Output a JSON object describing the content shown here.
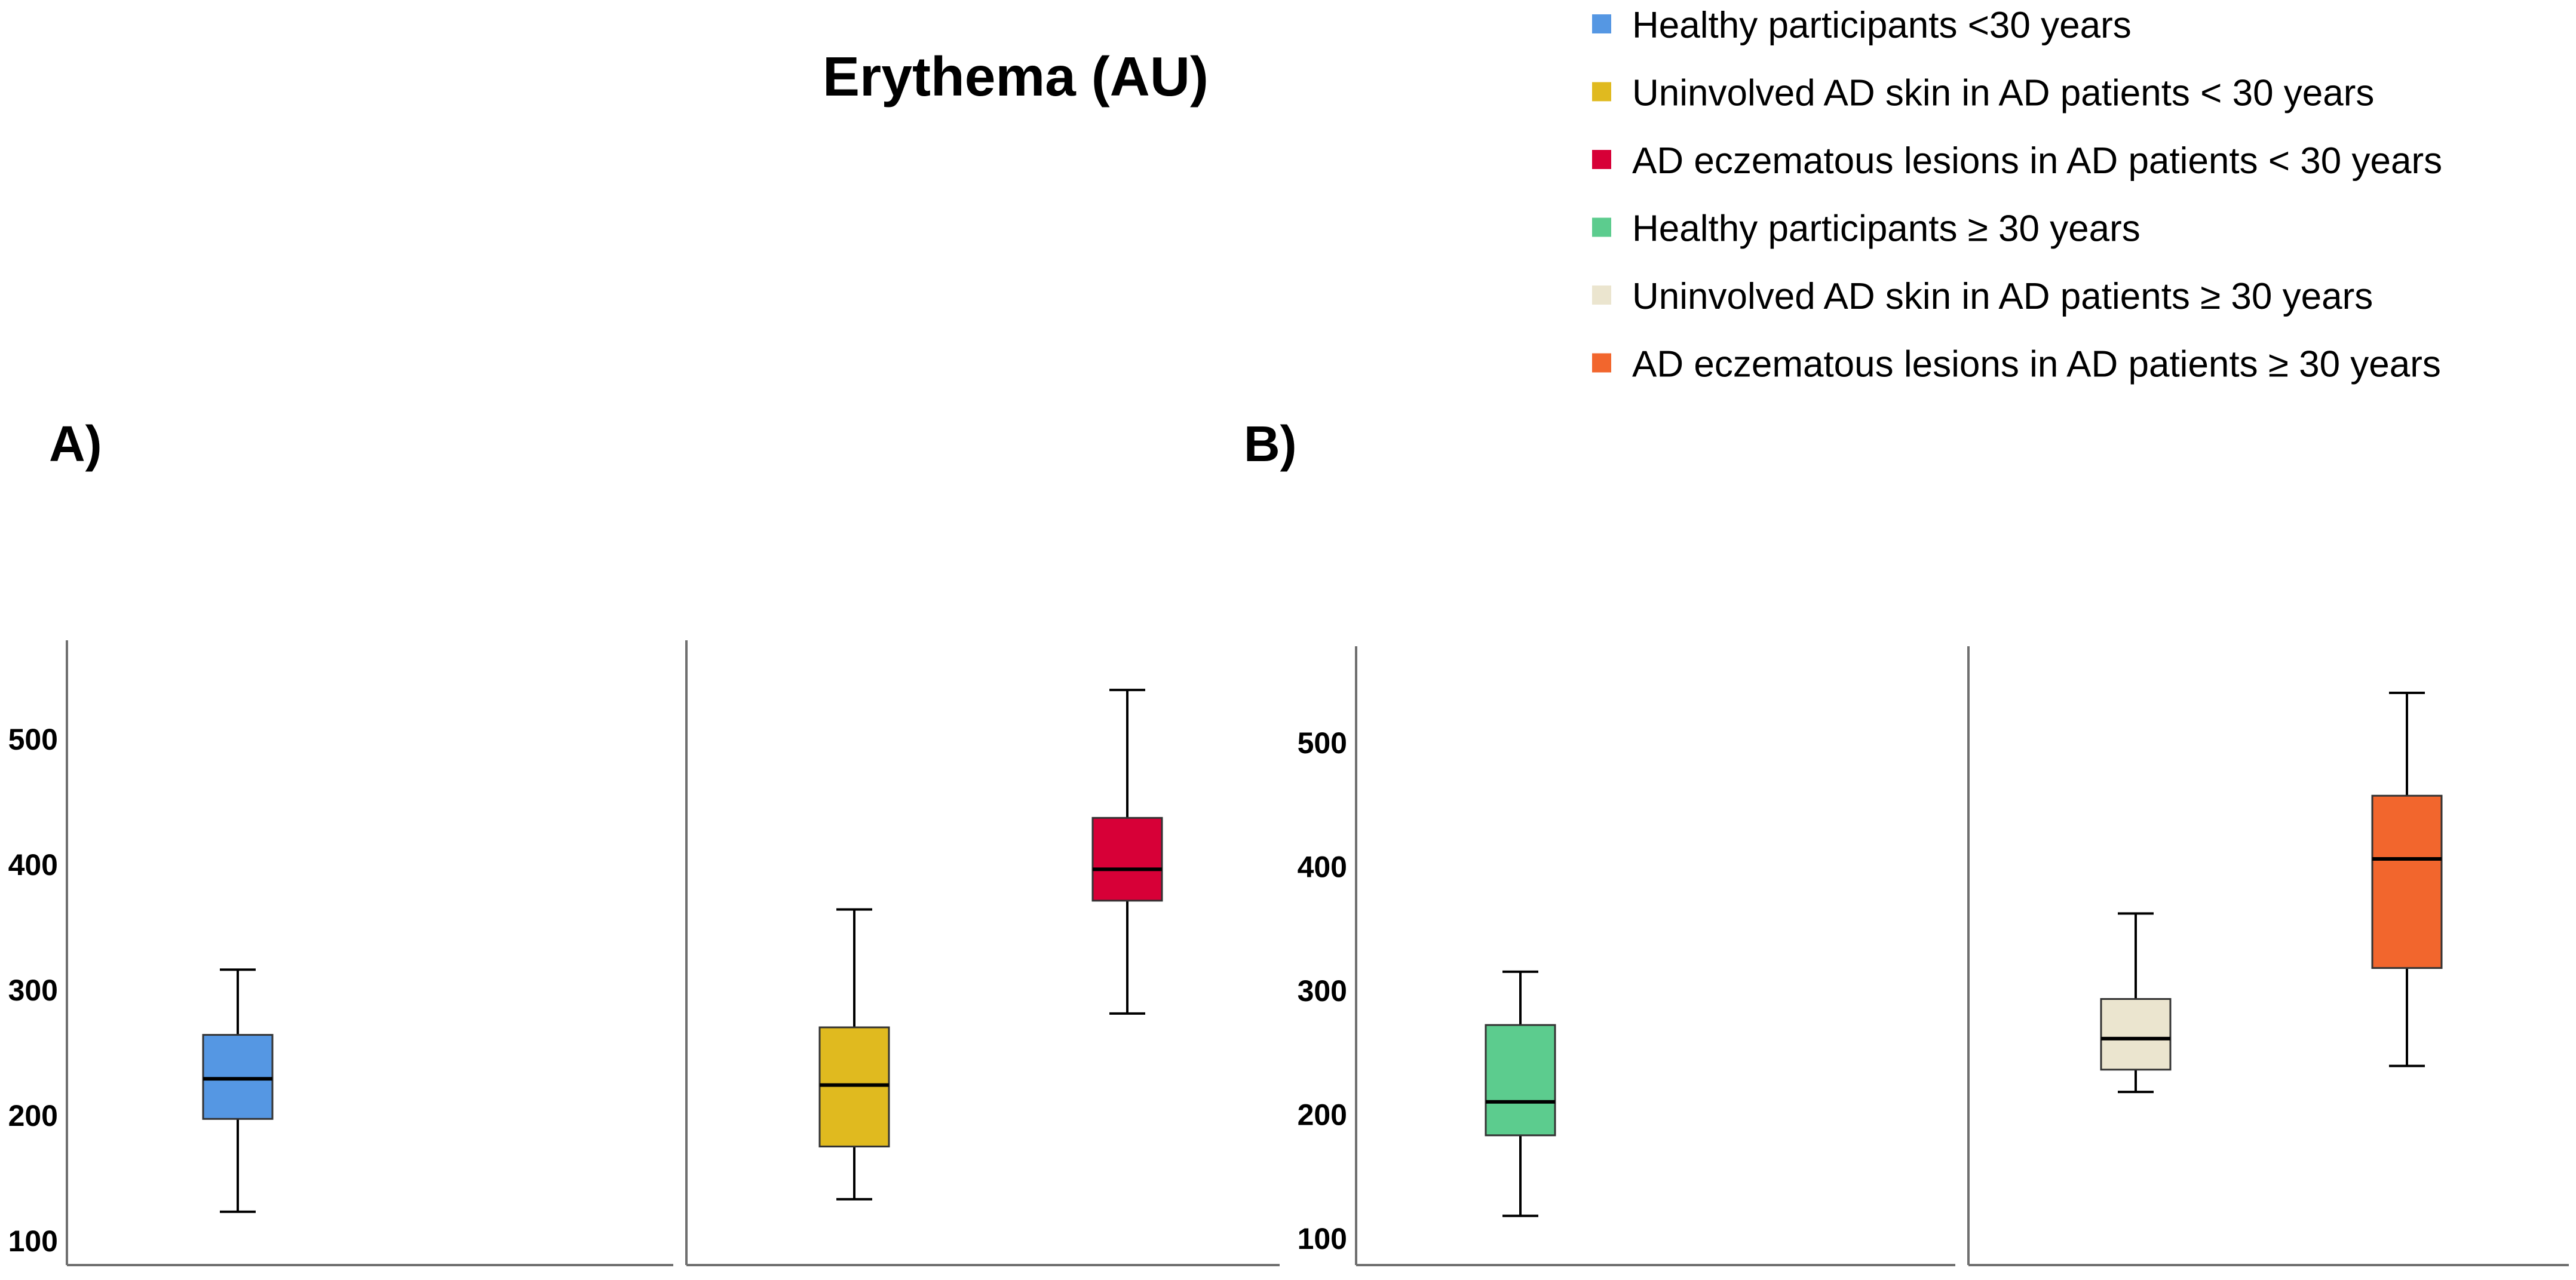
{
  "chart_data": {
    "type": "box",
    "title": "Erythema (AU)",
    "ylabel": "",
    "ylim": [
      78,
      578
    ],
    "yticks": [
      100,
      200,
      300,
      400,
      500
    ],
    "legend": {
      "placement": "top-right",
      "entries": [
        {
          "label": "Healthy participants <30 years",
          "color": "#5597e3"
        },
        {
          "label": "Uninvolved AD skin in AD patients < 30 years",
          "color": "#e0ba1f"
        },
        {
          "label": "AD eczematous lesions in AD patients < 30 years",
          "color": "#d70037"
        },
        {
          "label": "Healthy participants  ≥ 30 years",
          "color": "#5ccc8e"
        },
        {
          "label": "Uninvolved AD skin in AD patients  ≥ 30 years",
          "color": "#ebe5cf"
        },
        {
          "label": "AD eczematous lesions in AD patients  ≥ 30 years",
          "color": "#f2662d"
        }
      ]
    },
    "panels": [
      {
        "label": "A)",
        "series": [
          {
            "name": "Healthy participants <30 years",
            "color": "#5597e3",
            "min": 123,
            "q1": 197,
            "median": 229,
            "q3": 264,
            "max": 316
          },
          {
            "name": "Uninvolved AD skin in AD patients < 30 years",
            "color": "#e0ba1f",
            "min": 133,
            "q1": 175,
            "median": 224,
            "q3": 270,
            "max": 364
          },
          {
            "name": "AD eczematous lesions in AD patients < 30 years",
            "color": "#d70037",
            "min": 281,
            "q1": 371,
            "median": 396,
            "q3": 437,
            "max": 539
          }
        ]
      },
      {
        "label": "B)",
        "series": [
          {
            "name": "Healthy participants  ≥ 30 years",
            "color": "#5ccc8e",
            "min": 118,
            "q1": 183,
            "median": 210,
            "q3": 272,
            "max": 315
          },
          {
            "name": "Uninvolved AD skin in AD patients  ≥ 30 years",
            "color": "#ebe5cf",
            "min": 218,
            "q1": 236,
            "median": 261,
            "q3": 293,
            "max": 362
          },
          {
            "name": "AD eczematous lesions in AD patients  ≥ 30 years",
            "color": "#f2662d",
            "min": 239,
            "q1": 318,
            "median": 406,
            "q3": 457,
            "max": 540
          }
        ]
      }
    ]
  }
}
